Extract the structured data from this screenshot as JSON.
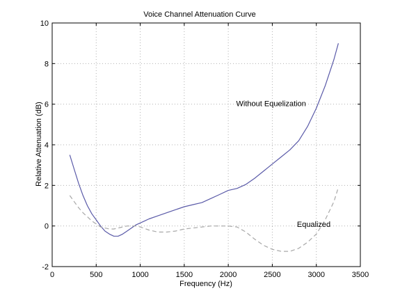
{
  "chart_data": {
    "type": "line",
    "title": "Voice Channel Attenuation Curve",
    "xlabel": "Frequency (Hz)",
    "ylabel": "Relative Attenuation (dB)",
    "xlim": [
      0,
      3500
    ],
    "ylim": [
      -2,
      10
    ],
    "x_ticks": [
      0,
      500,
      1000,
      1500,
      2000,
      2500,
      3000,
      3500
    ],
    "y_ticks": [
      -2,
      0,
      2,
      4,
      6,
      8,
      10
    ],
    "grid": true,
    "colors": {
      "without": "#5a5aa8",
      "equalized": "#a8a8a8",
      "grid": "#b0b0b0",
      "axis": "#000000"
    },
    "series": [
      {
        "style": "solid",
        "color": "#5a5aa8",
        "x": [
          200,
          250,
          300,
          350,
          400,
          450,
          500,
          550,
          600,
          650,
          700,
          750,
          800,
          850,
          900,
          950,
          1000,
          1050,
          1100,
          1200,
          1300,
          1400,
          1500,
          1600,
          1700,
          1800,
          1900,
          2000,
          2100,
          2200,
          2300,
          2400,
          2500,
          2600,
          2700,
          2800,
          2900,
          3000,
          3100,
          3200,
          3250
        ],
        "y": [
          3.5,
          2.8,
          2.1,
          1.5,
          1.0,
          0.6,
          0.3,
          0.0,
          -0.25,
          -0.4,
          -0.5,
          -0.5,
          -0.4,
          -0.25,
          -0.1,
          0.05,
          0.15,
          0.25,
          0.35,
          0.5,
          0.65,
          0.8,
          0.95,
          1.05,
          1.15,
          1.35,
          1.55,
          1.75,
          1.85,
          2.05,
          2.35,
          2.7,
          3.05,
          3.4,
          3.75,
          4.2,
          4.9,
          5.8,
          6.9,
          8.2,
          9.0
        ]
      },
      {
        "style": "dashed",
        "color": "#a8a8a8",
        "x": [
          200,
          250,
          300,
          350,
          400,
          450,
          500,
          550,
          600,
          650,
          700,
          750,
          800,
          850,
          900,
          950,
          1000,
          1100,
          1200,
          1300,
          1400,
          1500,
          1600,
          1700,
          1800,
          1900,
          2000,
          2100,
          2200,
          2300,
          2400,
          2500,
          2600,
          2700,
          2800,
          2900,
          3000,
          3100,
          3200,
          3250
        ],
        "y": [
          1.5,
          1.2,
          0.9,
          0.65,
          0.45,
          0.25,
          0.1,
          -0.05,
          -0.1,
          -0.15,
          -0.15,
          -0.1,
          -0.05,
          0.0,
          0.0,
          0.0,
          -0.05,
          -0.2,
          -0.3,
          -0.3,
          -0.25,
          -0.15,
          -0.1,
          -0.05,
          0.0,
          0.0,
          0.0,
          -0.05,
          -0.3,
          -0.65,
          -0.95,
          -1.15,
          -1.25,
          -1.25,
          -1.1,
          -0.8,
          -0.4,
          0.3,
          1.2,
          1.9
        ]
      }
    ],
    "annotations": [
      {
        "text": "Without Equelization",
        "x": 2090,
        "y": 5.9
      },
      {
        "text": "Equalized",
        "x": 2780,
        "y": -0.05
      }
    ]
  }
}
